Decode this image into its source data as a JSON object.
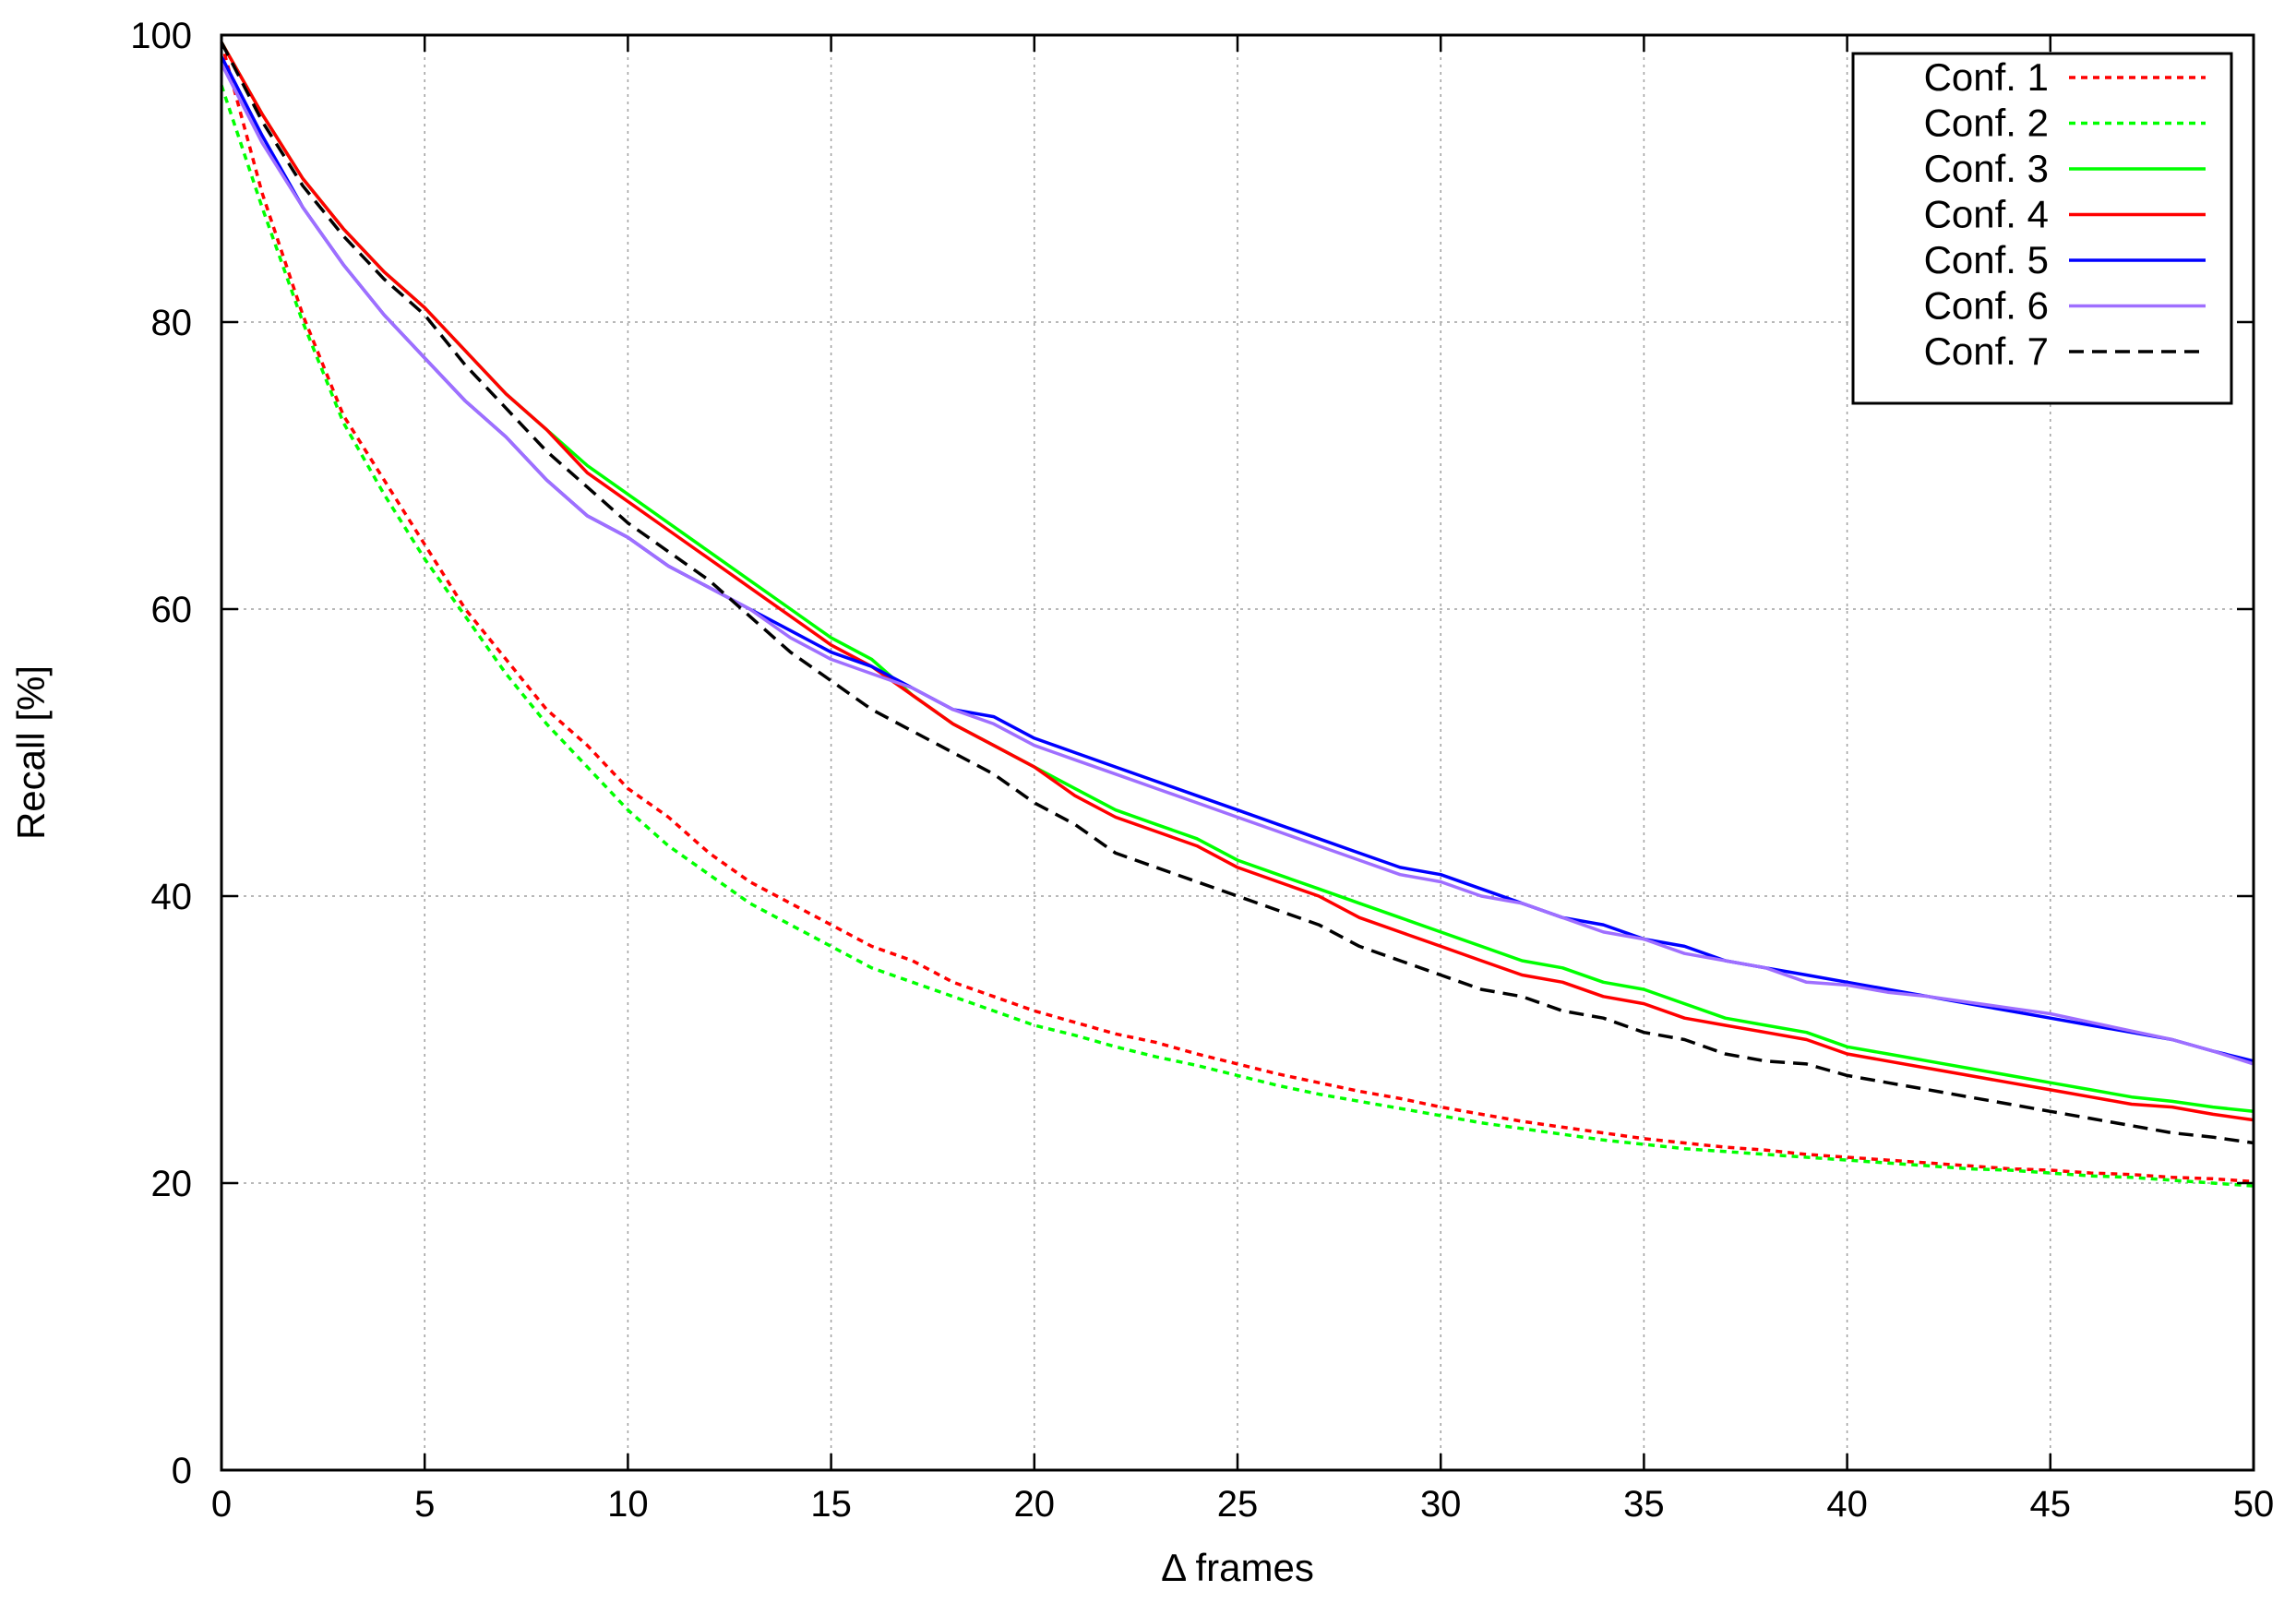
{
  "chart_data": {
    "type": "line",
    "title": "",
    "xlabel": "Δ frames",
    "ylabel": "Recall [%]",
    "xlim": [
      0,
      50
    ],
    "ylim": [
      0,
      100
    ],
    "xticks": [
      0,
      5,
      10,
      15,
      20,
      25,
      30,
      35,
      40,
      45,
      50
    ],
    "yticks": [
      0,
      20,
      40,
      60,
      80,
      100
    ],
    "grid": true,
    "legend_position": "top-right",
    "x": [
      0,
      1,
      2,
      3,
      4,
      5,
      6,
      7,
      8,
      9,
      10,
      11,
      12,
      13,
      14,
      15,
      16,
      17,
      18,
      19,
      20,
      21,
      22,
      23,
      24,
      25,
      26,
      27,
      28,
      29,
      30,
      31,
      32,
      33,
      34,
      35,
      36,
      37,
      38,
      39,
      40,
      41,
      42,
      43,
      44,
      45,
      46,
      47,
      48,
      49,
      50
    ],
    "series": [
      {
        "name": "Conf. 1",
        "color": "#ff0000",
        "style": "dotted",
        "values": [
          99.5,
          89.0,
          80.5,
          73.5,
          69.0,
          64.5,
          60.0,
          56.5,
          53.0,
          50.5,
          47.5,
          45.5,
          43.0,
          41.0,
          39.5,
          38.0,
          36.5,
          35.5,
          34.0,
          33.0,
          32.0,
          31.2,
          30.4,
          29.8,
          29.0,
          28.3,
          27.6,
          27.0,
          26.4,
          25.9,
          25.3,
          24.8,
          24.3,
          23.9,
          23.5,
          23.1,
          22.8,
          22.5,
          22.3,
          22.0,
          21.8,
          21.6,
          21.4,
          21.2,
          21.0,
          20.9,
          20.7,
          20.6,
          20.4,
          20.3,
          20.1
        ]
      },
      {
        "name": "Conf. 2",
        "color": "#00ff00",
        "style": "dotted",
        "values": [
          96.5,
          88.0,
          80.0,
          73.0,
          68.0,
          63.5,
          59.5,
          55.5,
          52.0,
          49.0,
          46.0,
          43.5,
          41.5,
          39.5,
          38.0,
          36.5,
          35.0,
          34.0,
          33.0,
          32.0,
          31.0,
          30.3,
          29.5,
          28.8,
          28.2,
          27.5,
          26.8,
          26.2,
          25.7,
          25.2,
          24.7,
          24.2,
          23.8,
          23.4,
          23.0,
          22.7,
          22.4,
          22.2,
          22.0,
          21.8,
          21.6,
          21.4,
          21.2,
          21.0,
          20.9,
          20.7,
          20.5,
          20.4,
          20.2,
          20.0,
          19.8
        ]
      },
      {
        "name": "Conf. 3",
        "color": "#00ff00",
        "style": "solid",
        "values": [
          99.5,
          94.5,
          90.0,
          86.5,
          83.5,
          81.0,
          78.0,
          75.0,
          72.5,
          70.0,
          68.0,
          66.0,
          64.0,
          62.0,
          60.0,
          58.0,
          56.5,
          54.0,
          52.0,
          50.5,
          49.0,
          47.5,
          46.0,
          45.0,
          44.0,
          42.5,
          41.5,
          40.5,
          39.5,
          38.5,
          37.5,
          36.5,
          35.5,
          35.0,
          34.0,
          33.5,
          32.5,
          31.5,
          31.0,
          30.5,
          29.5,
          29.0,
          28.5,
          28.0,
          27.5,
          27.0,
          26.5,
          26.0,
          25.7,
          25.3,
          25.0
        ]
      },
      {
        "name": "Conf. 4",
        "color": "#ff0000",
        "style": "solid",
        "values": [
          99.5,
          94.5,
          90.0,
          86.5,
          83.5,
          81.0,
          78.0,
          75.0,
          72.5,
          69.5,
          67.5,
          65.5,
          63.5,
          61.5,
          59.5,
          57.5,
          56.0,
          54.0,
          52.0,
          50.5,
          49.0,
          47.0,
          45.5,
          44.5,
          43.5,
          42.0,
          41.0,
          40.0,
          38.5,
          37.5,
          36.5,
          35.5,
          34.5,
          34.0,
          33.0,
          32.5,
          31.5,
          31.0,
          30.5,
          30.0,
          29.0,
          28.5,
          28.0,
          27.5,
          27.0,
          26.5,
          26.0,
          25.5,
          25.3,
          24.8,
          24.4
        ]
      },
      {
        "name": "Conf. 5",
        "color": "#0000ff",
        "style": "solid",
        "values": [
          98.5,
          93.0,
          88.0,
          84.0,
          80.5,
          77.5,
          74.5,
          72.0,
          69.0,
          66.5,
          65.0,
          63.0,
          61.5,
          60.0,
          58.5,
          57.0,
          56.0,
          54.5,
          53.0,
          52.5,
          51.0,
          50.0,
          49.0,
          48.0,
          47.0,
          46.0,
          45.0,
          44.0,
          43.0,
          42.0,
          41.5,
          40.5,
          39.5,
          38.5,
          38.0,
          37.0,
          36.5,
          35.5,
          35.0,
          34.5,
          34.0,
          33.5,
          33.0,
          32.5,
          32.0,
          31.5,
          31.0,
          30.5,
          30.0,
          29.2,
          28.5
        ]
      },
      {
        "name": "Conf. 6",
        "color": "#9f6fff",
        "style": "solid",
        "values": [
          98.0,
          92.5,
          88.0,
          84.0,
          80.5,
          77.5,
          74.5,
          72.0,
          69.0,
          66.5,
          65.0,
          63.0,
          61.5,
          60.0,
          58.0,
          56.5,
          55.5,
          54.5,
          53.0,
          52.0,
          50.5,
          49.5,
          48.5,
          47.5,
          46.5,
          45.5,
          44.5,
          43.5,
          42.5,
          41.5,
          41.0,
          40.0,
          39.5,
          38.5,
          37.5,
          37.0,
          36.0,
          35.5,
          35.0,
          34.0,
          33.8,
          33.3,
          33.0,
          32.6,
          32.2,
          31.8,
          31.2,
          30.6,
          30.0,
          29.2,
          28.3
        ]
      },
      {
        "name": "Conf. 7",
        "color": "#000000",
        "style": "dashed",
        "values": [
          99.5,
          94.0,
          89.5,
          86.0,
          83.0,
          80.5,
          77.0,
          74.0,
          71.0,
          68.5,
          66.0,
          64.0,
          62.0,
          59.5,
          57.0,
          55.0,
          53.0,
          51.5,
          50.0,
          48.5,
          46.5,
          45.0,
          43.0,
          42.0,
          41.0,
          40.0,
          39.0,
          38.0,
          36.5,
          35.5,
          34.5,
          33.5,
          33.0,
          32.0,
          31.5,
          30.5,
          30.0,
          29.0,
          28.5,
          28.3,
          27.5,
          27.0,
          26.5,
          26.0,
          25.5,
          25.0,
          24.5,
          24.0,
          23.5,
          23.2,
          22.8
        ]
      }
    ]
  }
}
